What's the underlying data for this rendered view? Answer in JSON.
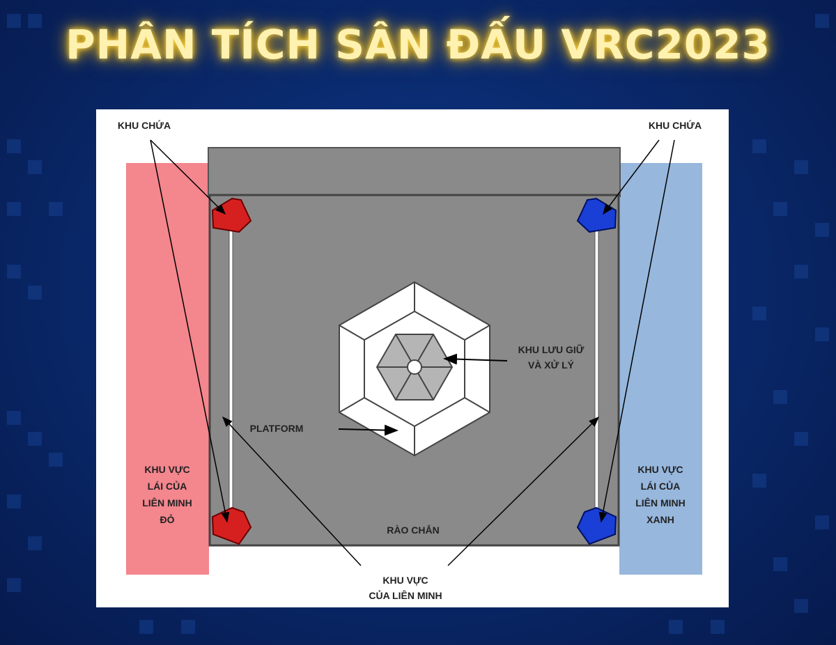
{
  "title": "PHÂN TÍCH SÂN ĐẤU VRC2023",
  "colors": {
    "background": "#0a2a6e",
    "title_glow": "#ffd84a",
    "red_zone": "#f4868e",
    "blue_zone": "#97b7dd",
    "field": "#8a8a8a",
    "red_container": "#d62020",
    "blue_container": "#1a3fd6"
  },
  "labels": {
    "container_left": "KHU CHỨA",
    "container_right": "KHU CHỨA",
    "storage_line1": "KHU LƯU GIỮ",
    "storage_line2": "VÀ XỬ LÝ",
    "platform": "PLATFORM",
    "barrier": "RÀO CHẮN",
    "red_drive_line1": "KHU VỰC",
    "red_drive_line2": "LÁI CỦA",
    "red_drive_line3": "LIÊN MINH",
    "red_drive_line4": "ĐỎ",
    "blue_drive_line1": "KHU VỰC",
    "blue_drive_line2": "LÁI CỦA",
    "blue_drive_line3": "LIÊN MINH",
    "blue_drive_line4": "XANH",
    "alliance_line1": "KHU VỰC",
    "alliance_line2": "CỦA LIÊN MINH"
  }
}
